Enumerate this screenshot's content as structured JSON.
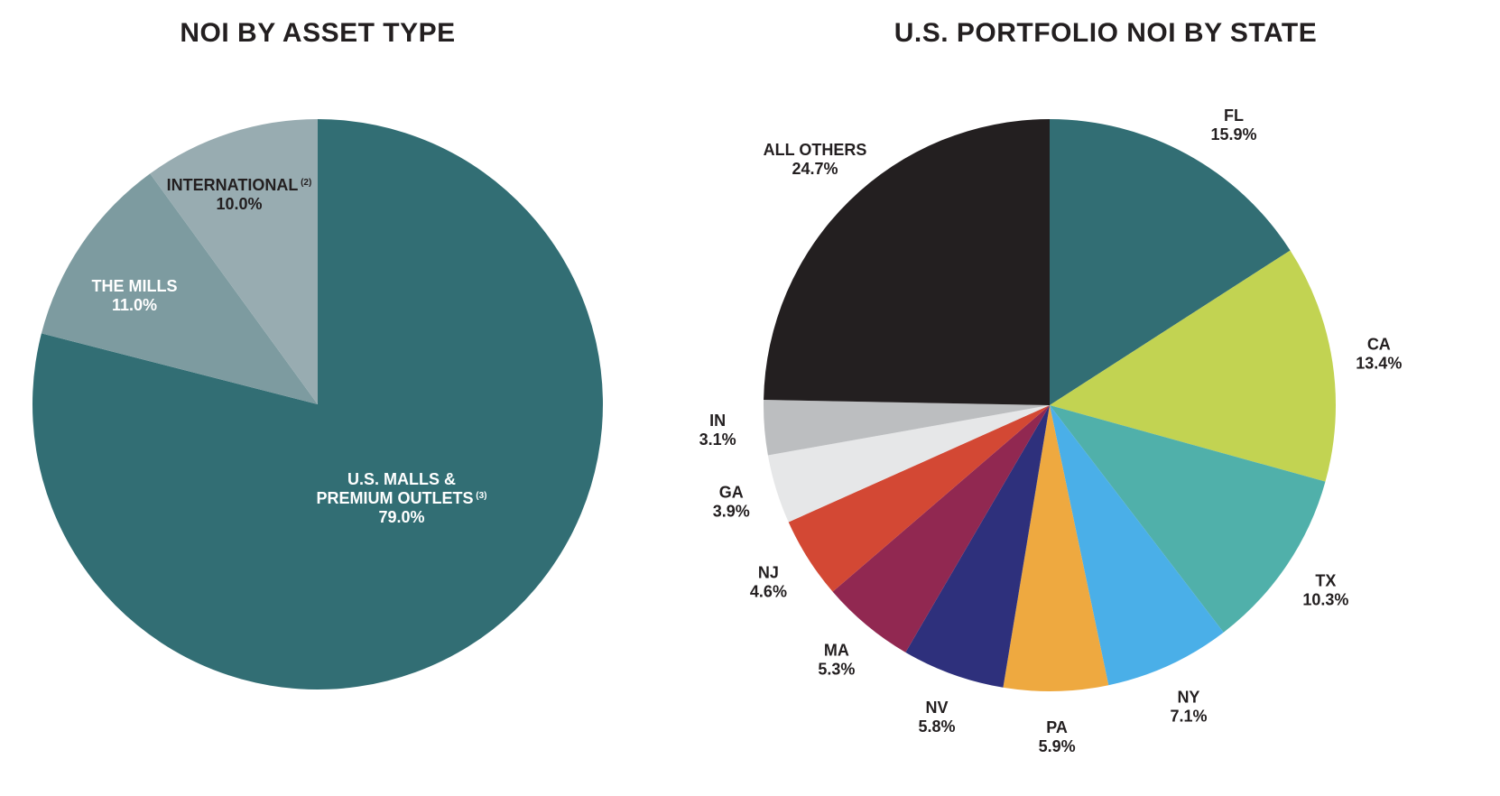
{
  "chart_data": [
    {
      "type": "pie",
      "title": "NOI BY ASSET TYPE",
      "slices": [
        {
          "label": "U.S. MALLS &",
          "label2": "PREMIUM OUTLETS",
          "note": "(3)",
          "value": 79.0,
          "value_label": "79.0%",
          "color": "#326e74",
          "text": "light"
        },
        {
          "label": "THE MILLS",
          "value": 11.0,
          "value_label": "11.0%",
          "color": "#7d9ba0",
          "text": "light"
        },
        {
          "label": "INTERNATIONAL",
          "note": "(2)",
          "value": 10.0,
          "value_label": "10.0%",
          "color": "#98acb1",
          "text": "dark"
        }
      ]
    },
    {
      "type": "pie",
      "title": "U.S. PORTFOLIO NOI BY STATE",
      "slices": [
        {
          "label": "FL",
          "value": 15.9,
          "value_label": "15.9%",
          "color": "#326e74"
        },
        {
          "label": "CA",
          "value": 13.4,
          "value_label": "13.4%",
          "color": "#c2d352"
        },
        {
          "label": "TX",
          "value": 10.3,
          "value_label": "10.3%",
          "color": "#50b0aa"
        },
        {
          "label": "NY",
          "value": 7.1,
          "value_label": "7.1%",
          "color": "#4aafe8"
        },
        {
          "label": "PA",
          "value": 5.9,
          "value_label": "5.9%",
          "color": "#eea940"
        },
        {
          "label": "NV",
          "value": 5.8,
          "value_label": "5.8%",
          "color": "#2e307c"
        },
        {
          "label": "MA",
          "value": 5.3,
          "value_label": "5.3%",
          "color": "#912851"
        },
        {
          "label": "NJ",
          "value": 4.6,
          "value_label": "4.6%",
          "color": "#d34834"
        },
        {
          "label": "GA",
          "value": 3.9,
          "value_label": "3.9%",
          "color": "#e6e7e8"
        },
        {
          "label": "IN",
          "value": 3.1,
          "value_label": "3.1%",
          "color": "#bcbec0"
        },
        {
          "label": "ALL OTHERS",
          "value": 24.7,
          "value_label": "24.7%",
          "color": "#231f20"
        }
      ]
    }
  ]
}
